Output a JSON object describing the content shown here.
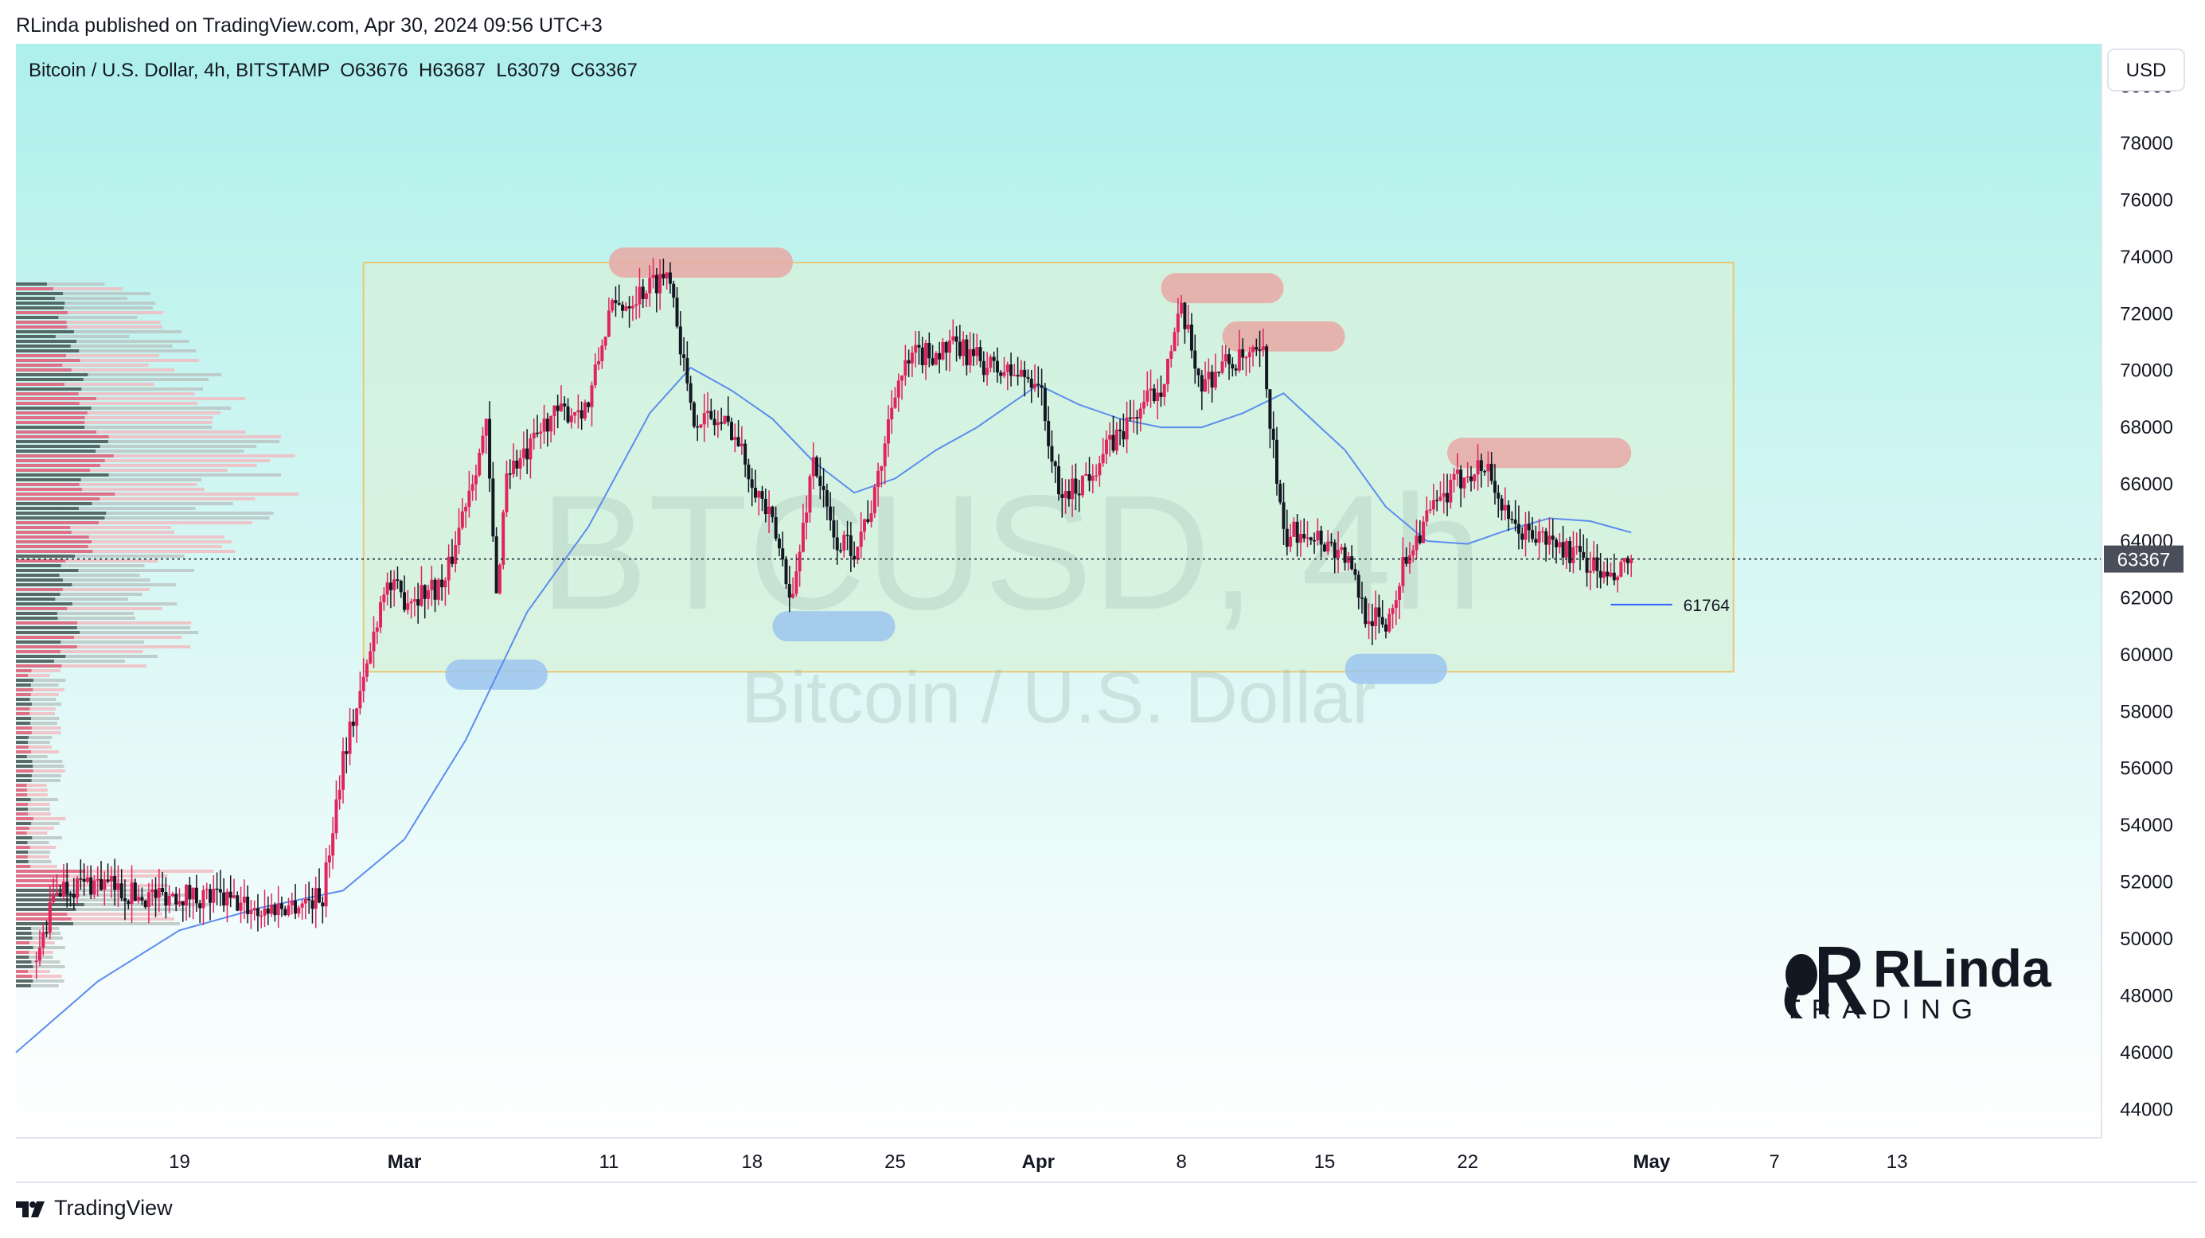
{
  "header": {
    "publisher": "RLinda published on TradingView.com, Apr 30, 2024 09:56 UTC+3",
    "symbol_line": "Bitcoin / U.S. Dollar, 4h, BITSTAMP  O63676  H63687  L63079  C63367"
  },
  "footer": {
    "brand": "TradingView"
  },
  "watermark": {
    "ticker": "BTCUSD, 4h",
    "name": "Bitcoin / U.S. Dollar"
  },
  "logo": {
    "text_top": "RLinda",
    "text_bottom": "TRADING"
  },
  "colors": {
    "bg_top": "#aef0eb",
    "bg_bottom": "#ffffff",
    "bull": "#e0245e",
    "bear": "#131722",
    "ma": "#5b8def",
    "range_fill": "#d7f2d9",
    "range_border": "#e8c877",
    "resistance": "#e8a8a4",
    "support": "#9cc4ee",
    "price_label_bg": "#4a4e5a"
  },
  "chart_data": {
    "type": "candlestick",
    "symbol": "BTCUSD",
    "exchange": "BITSTAMP",
    "timeframe": "4h",
    "currency": "USD",
    "last_bar": {
      "open": 63676,
      "high": 63687,
      "low": 63079,
      "close": 63367
    },
    "current_price": 63367,
    "marked_level": 61764,
    "yticks": [
      80000,
      78000,
      76000,
      74000,
      72000,
      70000,
      68000,
      66000,
      64000,
      62000,
      60000,
      58000,
      56000,
      54000,
      52000,
      50000,
      48000,
      46000,
      44000
    ],
    "xticks": [
      {
        "label": "19",
        "date": "2024-02-19"
      },
      {
        "label": "Mar",
        "date": "2024-03-01"
      },
      {
        "label": "11",
        "date": "2024-03-11"
      },
      {
        "label": "18",
        "date": "2024-03-18"
      },
      {
        "label": "25",
        "date": "2024-03-25"
      },
      {
        "label": "Apr",
        "date": "2024-04-01"
      },
      {
        "label": "8",
        "date": "2024-04-08"
      },
      {
        "label": "15",
        "date": "2024-04-15"
      },
      {
        "label": "22",
        "date": "2024-04-22"
      },
      {
        "label": "May",
        "date": "2024-05-01"
      },
      {
        "label": "7",
        "date": "2024-05-07"
      },
      {
        "label": "13",
        "date": "2024-05-13"
      }
    ],
    "ylim": [
      43000,
      81500
    ],
    "xlim": [
      "2024-02-11",
      "2024-05-23"
    ],
    "price_path": [
      [
        "2024-02-12",
        49200
      ],
      [
        "2024-02-13",
        51800
      ],
      [
        "2024-02-15",
        52000
      ],
      [
        "2024-02-17",
        51500
      ],
      [
        "2024-02-19",
        51600
      ],
      [
        "2024-02-21",
        51400
      ],
      [
        "2024-02-23",
        51000
      ],
      [
        "2024-02-25",
        51300
      ],
      [
        "2024-02-26",
        51500
      ],
      [
        "2024-02-27",
        56500
      ],
      [
        "2024-02-28",
        59000
      ],
      [
        "2024-02-29",
        62500
      ],
      [
        "2024-03-01",
        62000
      ],
      [
        "2024-03-03",
        62500
      ],
      [
        "2024-03-04",
        65500
      ],
      [
        "2024-03-05",
        68000
      ],
      [
        "2024-03-05T12",
        62000
      ],
      [
        "2024-03-06",
        66500
      ],
      [
        "2024-03-07",
        67000
      ],
      [
        "2024-03-08",
        68300
      ],
      [
        "2024-03-10",
        68800
      ],
      [
        "2024-03-11",
        72000
      ],
      [
        "2024-03-13",
        73000
      ],
      [
        "2024-03-14",
        73500
      ],
      [
        "2024-03-15",
        68500
      ],
      [
        "2024-03-17",
        68000
      ],
      [
        "2024-03-19",
        64500
      ],
      [
        "2024-03-20",
        62000
      ],
      [
        "2024-03-21",
        67000
      ],
      [
        "2024-03-22",
        64000
      ],
      [
        "2024-03-23",
        63800
      ],
      [
        "2024-03-24",
        65500
      ],
      [
        "2024-03-25",
        69500
      ],
      [
        "2024-03-26",
        70500
      ],
      [
        "2024-03-28",
        70800
      ],
      [
        "2024-03-30",
        70000
      ],
      [
        "2024-04-01",
        69700
      ],
      [
        "2024-04-02",
        65500
      ],
      [
        "2024-04-03",
        66000
      ],
      [
        "2024-04-05",
        67800
      ],
      [
        "2024-04-07",
        69500
      ],
      [
        "2024-04-08",
        72000
      ],
      [
        "2024-04-09",
        69500
      ],
      [
        "2024-04-10",
        70200
      ],
      [
        "2024-04-12",
        70500
      ],
      [
        "2024-04-13",
        64000
      ],
      [
        "2024-04-14",
        64500
      ],
      [
        "2024-04-16",
        63500
      ],
      [
        "2024-04-17",
        61500
      ],
      [
        "2024-04-18",
        61000
      ],
      [
        "2024-04-19",
        63500
      ],
      [
        "2024-04-20",
        64800
      ],
      [
        "2024-04-22",
        66500
      ],
      [
        "2024-04-23",
        66600
      ],
      [
        "2024-04-24",
        64500
      ],
      [
        "2024-04-26",
        64000
      ],
      [
        "2024-04-28",
        63200
      ],
      [
        "2024-04-29",
        62500
      ],
      [
        "2024-04-30",
        63367
      ]
    ],
    "moving_average": [
      [
        "2024-02-11",
        46000
      ],
      [
        "2024-02-15",
        48500
      ],
      [
        "2024-02-19",
        50300
      ],
      [
        "2024-02-23",
        51100
      ],
      [
        "2024-02-27",
        51700
      ],
      [
        "2024-03-01",
        53500
      ],
      [
        "2024-03-04",
        57000
      ],
      [
        "2024-03-07",
        61500
      ],
      [
        "2024-03-10",
        64500
      ],
      [
        "2024-03-13",
        68500
      ],
      [
        "2024-03-15",
        70100
      ],
      [
        "2024-03-17",
        69300
      ],
      [
        "2024-03-19",
        68300
      ],
      [
        "2024-03-21",
        66800
      ],
      [
        "2024-03-23",
        65700
      ],
      [
        "2024-03-25",
        66200
      ],
      [
        "2024-03-27",
        67200
      ],
      [
        "2024-03-29",
        68000
      ],
      [
        "2024-04-01",
        69500
      ],
      [
        "2024-04-03",
        68800
      ],
      [
        "2024-04-05",
        68300
      ],
      [
        "2024-04-07",
        68000
      ],
      [
        "2024-04-09",
        68000
      ],
      [
        "2024-04-11",
        68500
      ],
      [
        "2024-04-13",
        69200
      ],
      [
        "2024-04-16",
        67200
      ],
      [
        "2024-04-18",
        65200
      ],
      [
        "2024-04-20",
        64000
      ],
      [
        "2024-04-22",
        63900
      ],
      [
        "2024-04-24",
        64400
      ],
      [
        "2024-04-26",
        64800
      ],
      [
        "2024-04-28",
        64700
      ],
      [
        "2024-04-30",
        64300
      ]
    ],
    "annotations": {
      "range_box": {
        "from": "2024-02-28",
        "to": "2024-05-05",
        "top": 73800,
        "bottom": 59400
      },
      "resistance_zones": [
        {
          "from": "2024-03-11",
          "to": "2024-03-20",
          "level": 73800
        },
        {
          "from": "2024-04-07",
          "to": "2024-04-13",
          "level": 72900
        },
        {
          "from": "2024-04-10",
          "to": "2024-04-16",
          "level": 71200
        },
        {
          "from": "2024-04-21",
          "to": "2024-04-30",
          "level": 67100
        }
      ],
      "support_zones": [
        {
          "from": "2024-03-03",
          "to": "2024-03-08",
          "level": 59300
        },
        {
          "from": "2024-03-19",
          "to": "2024-03-25",
          "level": 61000
        },
        {
          "from": "2024-04-16",
          "to": "2024-04-21",
          "level": 59500
        }
      ]
    }
  }
}
